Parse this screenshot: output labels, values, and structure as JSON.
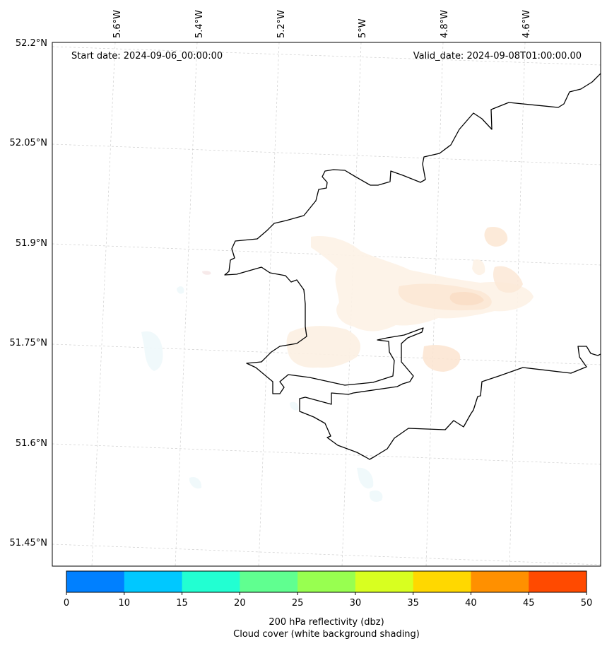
{
  "map": {
    "start_date": "Start date: 2024-09-06_00:00:00",
    "valid_date": "Valid_date: 2024-09-08T01:00:00.00",
    "lon_labels": [
      "5.6°W",
      "5.4°W",
      "5.2°W",
      "5°W",
      "4.8°W",
      "4.6°W"
    ],
    "lat_labels": [
      "52.2°N",
      "52.05°N",
      "51.9°N",
      "51.75°N",
      "51.6°N",
      "51.45°N"
    ]
  },
  "colorbar": {
    "ticks": [
      "0",
      "10",
      "15",
      "20",
      "25",
      "30",
      "35",
      "40",
      "45",
      "50"
    ],
    "colors": [
      "#0080ff",
      "#00c8ff",
      "#22ffd2",
      "#60ff90",
      "#98ff50",
      "#d8ff20",
      "#ffd800",
      "#ff9000",
      "#ff4a00"
    ],
    "label_line1": "200 hPa reflectivity (dbz)",
    "label_line2": "Cloud cover (white background shading)"
  }
}
